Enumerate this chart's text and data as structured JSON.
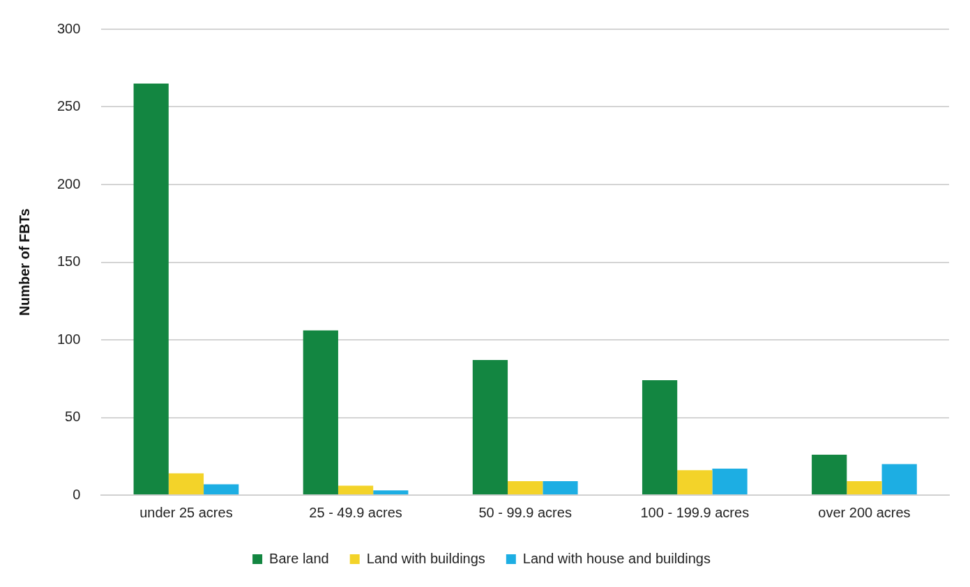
{
  "chart_data": {
    "type": "bar",
    "ylabel": "Number of FBTs",
    "categories": [
      "under 25 acres",
      "25 - 49.9 acres",
      "50 - 99.9 acres",
      "100 - 199.9 acres",
      "over 200 acres"
    ],
    "series": [
      {
        "name": "Bare land",
        "color": "#138641",
        "values": [
          265,
          106,
          87,
          74,
          26
        ]
      },
      {
        "name": "Land with buildings",
        "color": "#f3d329",
        "values": [
          14,
          6,
          9,
          16,
          9
        ]
      },
      {
        "name": "Land with house and buildings",
        "color": "#1daee3",
        "values": [
          7,
          3,
          9,
          17,
          20
        ]
      }
    ],
    "ylim": [
      0,
      300
    ],
    "yticks": [
      0,
      50,
      100,
      150,
      200,
      250,
      300
    ],
    "grid": "y",
    "legend": "bottom"
  }
}
